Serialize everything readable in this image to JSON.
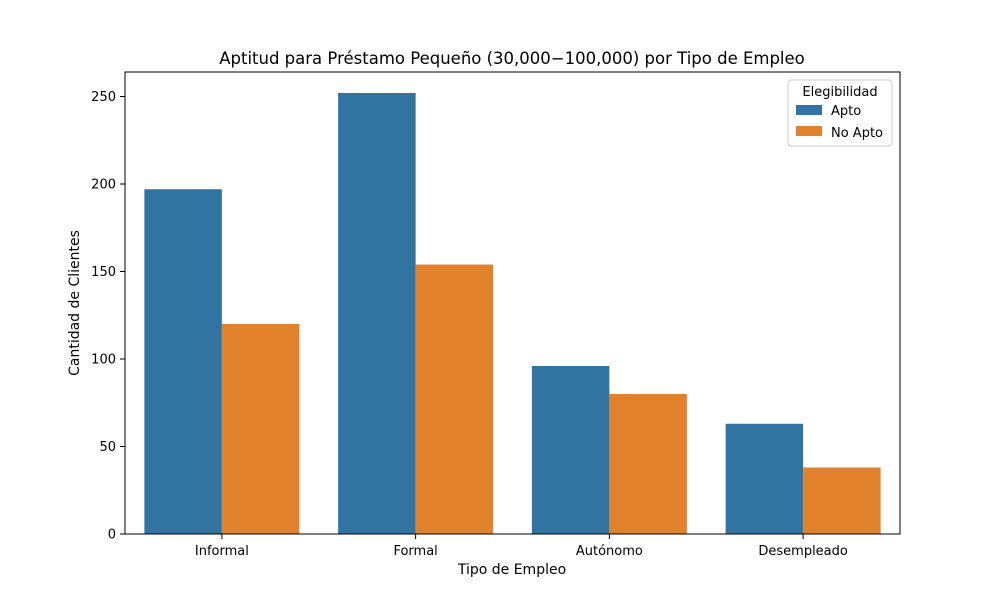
{
  "chart_data": {
    "type": "bar",
    "title": "Aptitud para Préstamo Pequeño (30,000−100,000) por Tipo de Empleo",
    "xlabel": "Tipo de Empleo",
    "ylabel": "Cantidad de Clientes",
    "categories": [
      "Informal",
      "Formal",
      "Autónomo",
      "Desempleado"
    ],
    "series": [
      {
        "name": "Apto",
        "values": [
          197,
          252,
          96,
          63
        ],
        "color": "#3274a1"
      },
      {
        "name": "No Apto",
        "values": [
          120,
          154,
          80,
          38
        ],
        "color": "#e1812c"
      }
    ],
    "ylim": [
      0,
      264
    ],
    "yticks": [
      0,
      50,
      100,
      150,
      200,
      250
    ],
    "legend": {
      "title": "Elegibilidad",
      "placement": "top-right"
    },
    "grid": false
  }
}
